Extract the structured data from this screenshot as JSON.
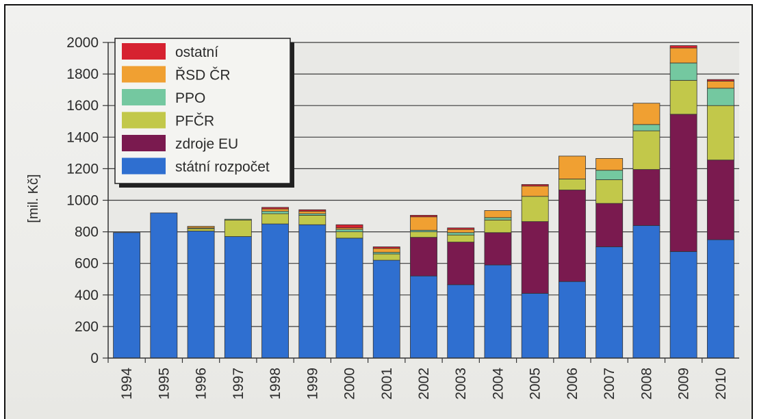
{
  "chart_data": {
    "type": "bar",
    "stacked": true,
    "ylabel": "[mil. Kč]",
    "xlabel": "",
    "ylim": [
      0,
      2000
    ],
    "yticks": [
      0,
      200,
      400,
      600,
      800,
      1000,
      1200,
      1400,
      1600,
      1800,
      2000
    ],
    "grid": true,
    "legend_position": "top-left",
    "categories": [
      "1994",
      "1995",
      "1996",
      "1997",
      "1998",
      "1999",
      "2000",
      "2001",
      "2002",
      "2003",
      "2004",
      "2005",
      "2006",
      "2007",
      "2008",
      "2009",
      "2010"
    ],
    "series": [
      {
        "name": "státní rozpočet",
        "color": "#2f6fd0",
        "values": [
          795,
          920,
          805,
          770,
          850,
          845,
          760,
          620,
          520,
          465,
          590,
          410,
          485,
          705,
          840,
          675,
          750
        ]
      },
      {
        "name": "zdroje EU",
        "color": "#7a1a4f",
        "values": [
          0,
          0,
          0,
          0,
          0,
          0,
          0,
          0,
          245,
          270,
          205,
          455,
          580,
          275,
          355,
          870,
          505
        ]
      },
      {
        "name": "PFČR",
        "color": "#c2c84a",
        "values": [
          0,
          0,
          15,
          105,
          65,
          60,
          40,
          40,
          35,
          45,
          80,
          160,
          70,
          150,
          245,
          215,
          345
        ]
      },
      {
        "name": "PPO",
        "color": "#74c8a0",
        "values": [
          0,
          0,
          5,
          5,
          15,
          10,
          15,
          10,
          10,
          15,
          15,
          0,
          0,
          60,
          40,
          110,
          110
        ]
      },
      {
        "name": "ŘSD ČR",
        "color": "#f0a032",
        "values": [
          0,
          0,
          10,
          0,
          15,
          15,
          10,
          25,
          85,
          20,
          45,
          65,
          145,
          75,
          135,
          95,
          45
        ]
      },
      {
        "name": "ostatní",
        "color": "#d62230",
        "values": [
          0,
          0,
          0,
          0,
          10,
          10,
          20,
          10,
          10,
          10,
          0,
          10,
          0,
          0,
          0,
          15,
          10
        ]
      }
    ]
  }
}
